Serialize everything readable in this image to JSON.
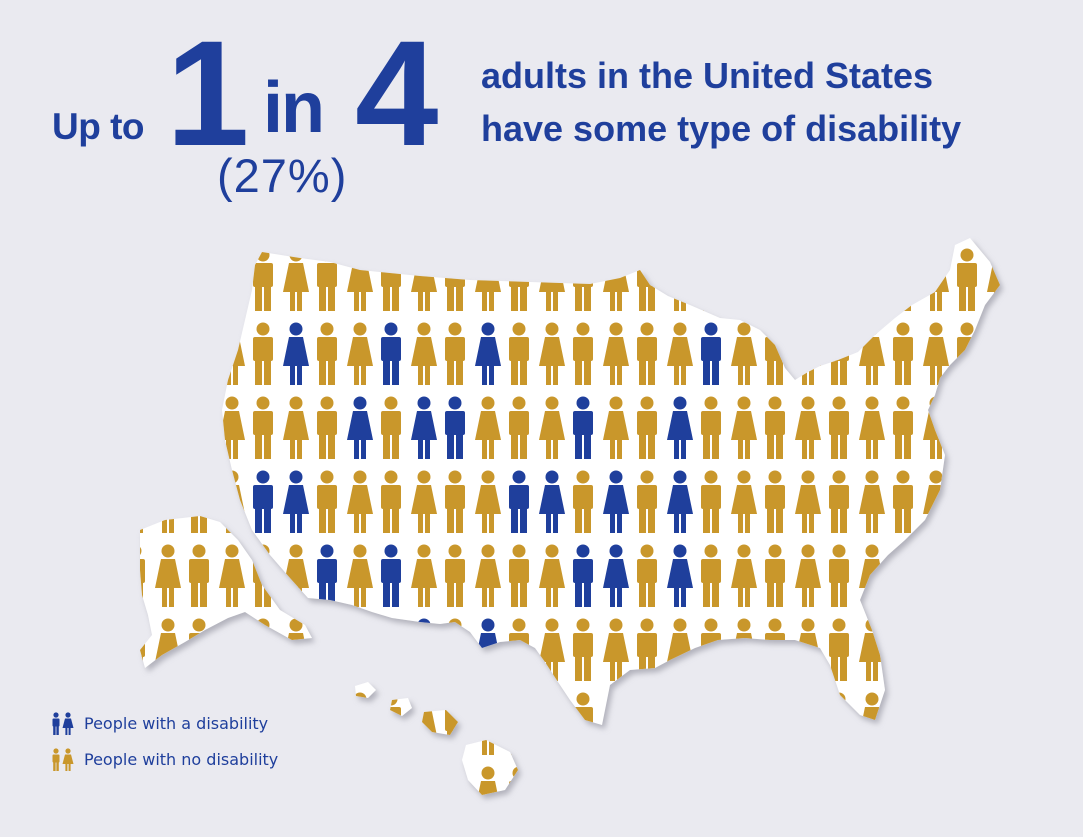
{
  "headline": {
    "up_to": "Up to",
    "big_one": "1",
    "in": "in",
    "big_four": "4",
    "percent": "(27%)",
    "line1": "adults in the United States",
    "line2": "have some type of disability"
  },
  "legend": {
    "disability_label": "People with a disability",
    "no_disability_label": "People with no disability"
  },
  "colors": {
    "disability": "#1f3f9c",
    "no_disability": "#c9972b",
    "map_fill": "#ffffff",
    "background": "#eaeaf0"
  },
  "figure_grid": {
    "disability_share": 0.27,
    "disability_cells": [
      [
        1,
        1
      ],
      [
        1,
        4
      ],
      [
        1,
        7
      ],
      [
        1,
        14
      ],
      [
        2,
        3
      ],
      [
        2,
        5
      ],
      [
        2,
        6
      ],
      [
        2,
        10
      ],
      [
        2,
        13
      ],
      [
        3,
        0
      ],
      [
        3,
        1
      ],
      [
        3,
        8
      ],
      [
        3,
        9
      ],
      [
        3,
        11
      ],
      [
        3,
        13
      ],
      [
        4,
        2
      ],
      [
        4,
        4
      ],
      [
        4,
        10
      ],
      [
        4,
        11
      ],
      [
        4,
        13
      ],
      [
        5,
        5
      ],
      [
        5,
        7
      ]
    ]
  }
}
